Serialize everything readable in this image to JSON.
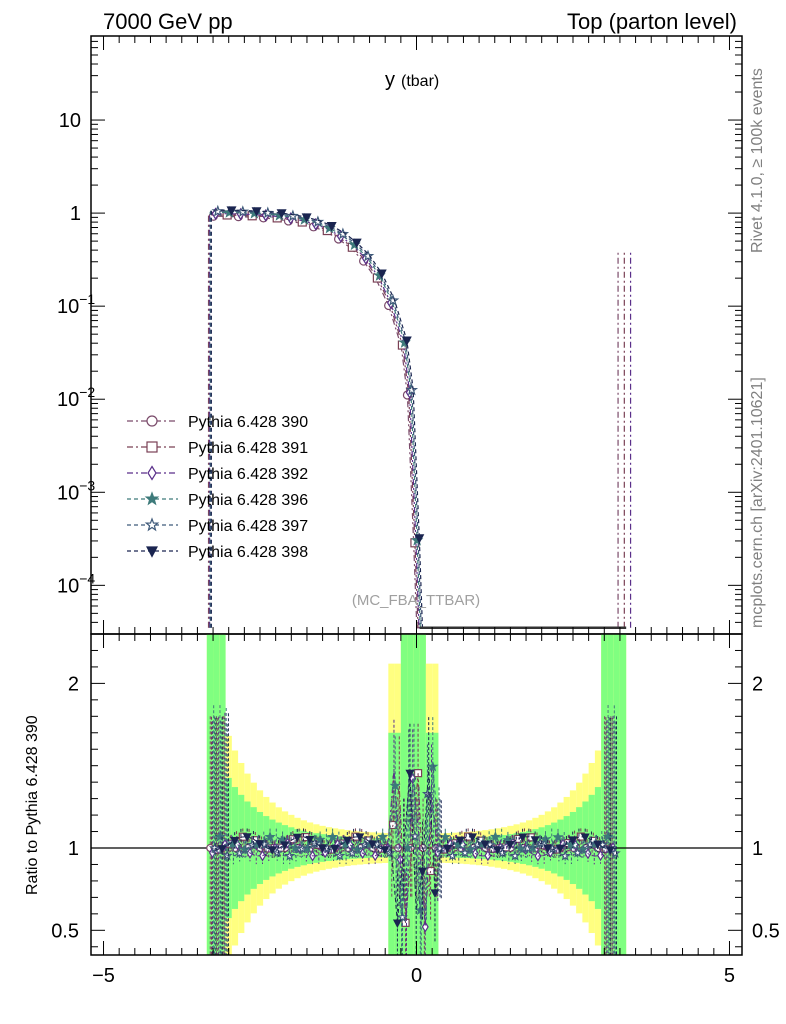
{
  "header": {
    "left": "7000 GeV pp",
    "right": "Top (parton level)"
  },
  "side_text": {
    "rivet": "Rivet 4.1.0, ≥ 100k events",
    "mcplots": "mcplots.cern.ch [arXiv:2401.10621]"
  },
  "watermark": "(MC_FBA_TTBAR)",
  "colors": {
    "band_yellow": "#ffff80",
    "band_green": "#80ff80"
  },
  "chart_data": [
    {
      "type": "line",
      "title": "y",
      "title_sub": "(tbar)",
      "yscale": "log",
      "xlim": [
        -5.2,
        5.2
      ],
      "ylim": [
        3e-05,
        80
      ],
      "y_ticks": [
        {
          "v": 0.0001,
          "base": "10",
          "exp": "−4"
        },
        {
          "v": 0.001,
          "base": "10",
          "exp": "−3"
        },
        {
          "v": 0.01,
          "base": "10",
          "exp": "−2"
        },
        {
          "v": 0.1,
          "base": "10",
          "exp": "−1"
        },
        {
          "v": 1,
          "base": "1",
          "exp": ""
        },
        {
          "v": 10,
          "base": "10",
          "exp": ""
        }
      ],
      "series": [
        {
          "name": "Pythia 6.428 390",
          "color": "#7a4a6a",
          "marker": "circle-open",
          "dash": "6,3,2,3"
        },
        {
          "name": "Pythia 6.428 391",
          "color": "#7a4055",
          "marker": "square-open",
          "dash": "6,3,2,3"
        },
        {
          "name": "Pythia 6.428 392",
          "color": "#5a2f8a",
          "marker": "diamond-open",
          "dash": "6,3,2,3"
        },
        {
          "name": "Pythia 6.428 396",
          "color": "#3d7a7a",
          "marker": "star-filled",
          "dash": "4,3"
        },
        {
          "name": "Pythia 6.428 397",
          "color": "#3f5a7a",
          "marker": "star-open",
          "dash": "4,3"
        },
        {
          "name": "Pythia 6.428 398",
          "color": "#1a2550",
          "marker": "triangle-down-filled",
          "dash": "4,3"
        }
      ],
      "points": [
        {
          "x": -3.2,
          "y": 1.0
        },
        {
          "x": -3.0,
          "y": 1.0
        },
        {
          "x": -2.8,
          "y": 0.99
        },
        {
          "x": -2.6,
          "y": 0.98
        },
        {
          "x": -2.4,
          "y": 0.96
        },
        {
          "x": -2.2,
          "y": 0.93
        },
        {
          "x": -2.0,
          "y": 0.89
        },
        {
          "x": -1.8,
          "y": 0.84
        },
        {
          "x": -1.6,
          "y": 0.77
        },
        {
          "x": -1.4,
          "y": 0.68
        },
        {
          "x": -1.2,
          "y": 0.57
        },
        {
          "x": -1.0,
          "y": 0.45
        },
        {
          "x": -0.8,
          "y": 0.33
        },
        {
          "x": -0.6,
          "y": 0.21
        },
        {
          "x": -0.4,
          "y": 0.11
        },
        {
          "x": -0.2,
          "y": 0.04
        },
        {
          "x": -0.1,
          "y": 0.012
        },
        {
          "x": 0.0,
          "y": 0.0003
        }
      ]
    },
    {
      "type": "line",
      "ylabel": "Ratio to Pythia 6.428 390",
      "ylim": [
        0.35,
        2.3
      ],
      "xlim": [
        -5.2,
        5.2
      ],
      "y_ticks": [
        0.5,
        1,
        2
      ],
      "y_tick_labels": [
        "0.5",
        "1",
        "2"
      ],
      "x_ticks": [
        -5,
        0,
        5
      ],
      "x_tick_labels": [
        "−5",
        "0",
        "5"
      ],
      "reference": 1
    }
  ]
}
